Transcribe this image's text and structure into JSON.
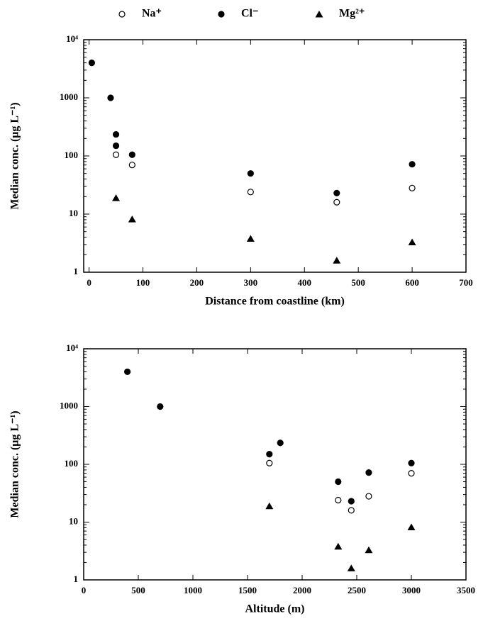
{
  "chart_data": [
    {
      "type": "scatter",
      "xlabel": "Distance from coastline (km)",
      "ylabel": "Median conc. (μg L⁻¹)",
      "xlim": [
        -10,
        700
      ],
      "xticks": [
        0,
        100,
        200,
        300,
        400,
        500,
        600,
        700
      ],
      "ylim": [
        1,
        10000
      ],
      "yscale": "log",
      "yticks": [
        1,
        10,
        100,
        1000,
        {
          "value": 10000,
          "label": "10⁴"
        }
      ],
      "series": [
        {
          "name": "Na⁺",
          "marker": "open-circle",
          "color": "#000000",
          "x": [
            50,
            80,
            300,
            460,
            600
          ],
          "values": [
            105,
            70,
            24,
            16,
            28
          ]
        },
        {
          "name": "Cl⁻",
          "marker": "filled-circle",
          "color": "#000000",
          "x": [
            5,
            40,
            50,
            50,
            80,
            300,
            460,
            600
          ],
          "values": [
            4000,
            1000,
            235,
            150,
            105,
            50,
            23,
            72
          ]
        },
        {
          "name": "Mg²⁺",
          "marker": "triangle",
          "color": "#000000",
          "x": [
            50,
            80,
            300,
            460,
            600
          ],
          "values": [
            19,
            8.2,
            3.8,
            1.6,
            3.3
          ]
        }
      ]
    },
    {
      "type": "scatter",
      "xlabel": "Altitude (m)",
      "ylabel": "Median conc. (μg L⁻¹)",
      "xlim": [
        0,
        3500
      ],
      "xticks": [
        0,
        500,
        1000,
        1500,
        2000,
        2500,
        3000,
        3500
      ],
      "ylim": [
        1,
        10000
      ],
      "yscale": "log",
      "yticks": [
        1,
        10,
        100,
        1000,
        {
          "value": 10000,
          "label": "10⁴"
        }
      ],
      "series": [
        {
          "marker": "open-circle",
          "color": "#000000",
          "x": [
            1700,
            2330,
            2450,
            2610,
            3000
          ],
          "values": [
            105,
            24,
            16,
            28,
            70
          ]
        },
        {
          "marker": "filled-circle",
          "color": "#000000",
          "x": [
            400,
            700,
            1700,
            1800,
            2330,
            2450,
            2610,
            3000
          ],
          "values": [
            4000,
            1000,
            150,
            235,
            50,
            23,
            72,
            105
          ]
        },
        {
          "marker": "triangle",
          "color": "#000000",
          "x": [
            1700,
            2330,
            2450,
            2610,
            3000
          ],
          "values": [
            19,
            3.8,
            1.6,
            3.3,
            8.2
          ]
        }
      ]
    }
  ]
}
